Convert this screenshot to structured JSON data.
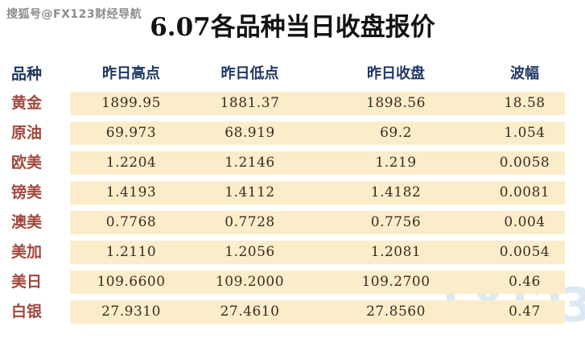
{
  "page": {
    "sohu_watermark": "搜狐号@FX123财经导航",
    "title": "6.07各品种当日收盘报价",
    "brand_watermark": "FX123"
  },
  "chart_data": {
    "type": "table",
    "title": "6.07各品种当日收盘报价",
    "columns": [
      "品种",
      "昨日高点",
      "昨日低点",
      "昨日收盘",
      "波幅"
    ],
    "rows": [
      [
        "黄金",
        "1899.95",
        "1881.37",
        "1898.56",
        "18.58"
      ],
      [
        "原油",
        "69.973",
        "68.919",
        "69.2",
        "1.054"
      ],
      [
        "欧美",
        "1.2204",
        "1.2146",
        "1.219",
        "0.0058"
      ],
      [
        "镑美",
        "1.4193",
        "1.4112",
        "1.4182",
        "0.0081"
      ],
      [
        "澳美",
        "0.7768",
        "0.7728",
        "0.7756",
        "0.004"
      ],
      [
        "美加",
        "1.2110",
        "1.2056",
        "1.2081",
        "0.0054"
      ],
      [
        "美日",
        "109.6600",
        "109.2000",
        "109.2700",
        "0.46"
      ],
      [
        "白银",
        "27.9310",
        "27.4610",
        "27.8560",
        "0.47"
      ]
    ],
    "layout": {
      "grid": false,
      "row_band_color": "#FBEDC9",
      "band_columns": "values-only",
      "legend": "none"
    }
  },
  "colors": {
    "background": "#FFFFFF",
    "title_text": "#121212",
    "header_text": "#1F3864",
    "row_label_text": "#A1483C",
    "value_text": "#3A2B24",
    "row_band": "#FBEDC9",
    "sohu_watermark_text": "#8C8C8C",
    "brand_watermark_text": "#DCE9F5"
  }
}
